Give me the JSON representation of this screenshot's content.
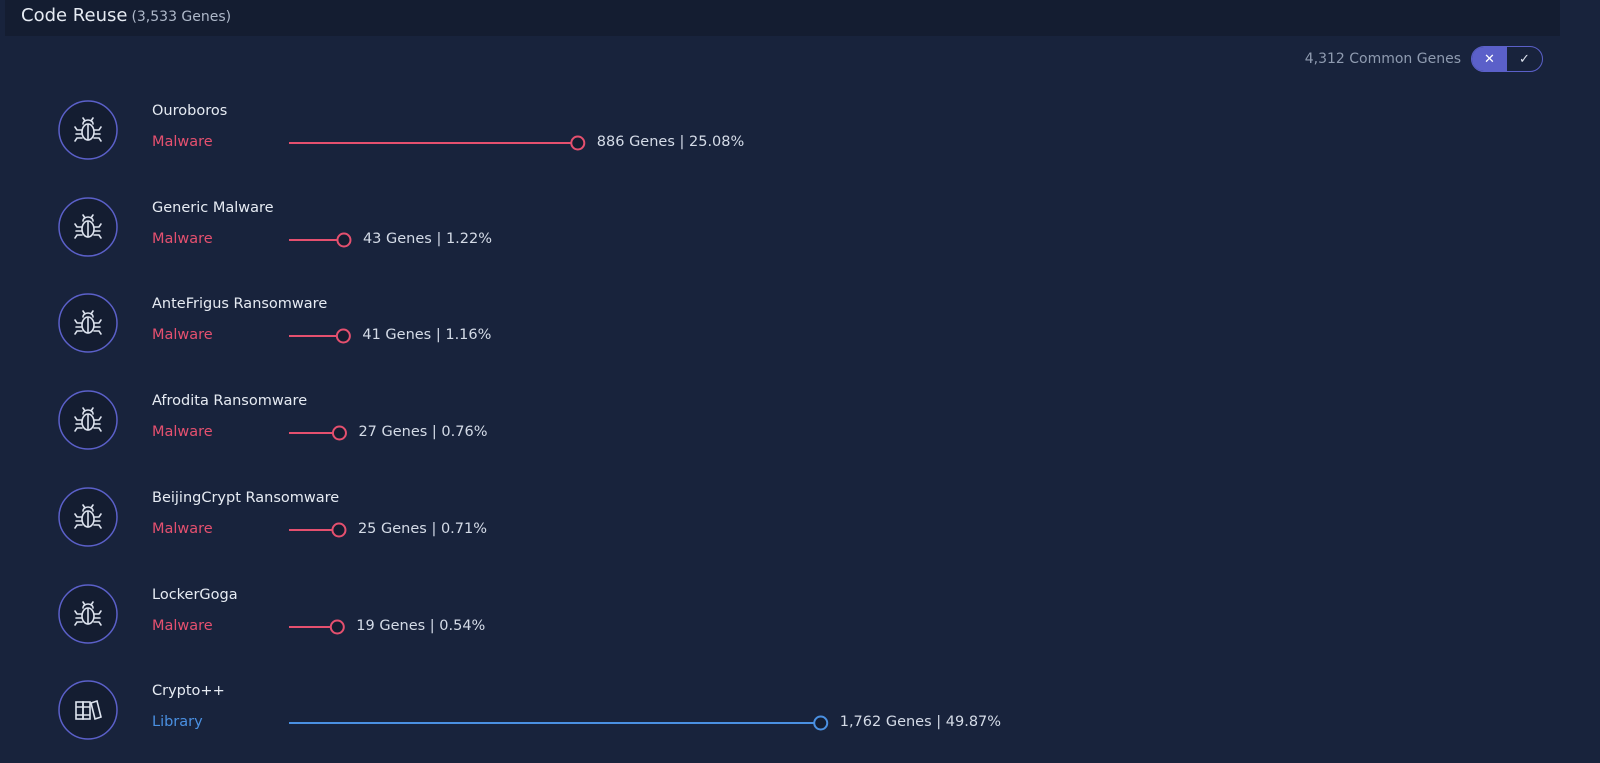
{
  "header": {
    "title": "Code Reuse",
    "count": "(3,533 Genes)"
  },
  "toolbar": {
    "common_genes": "4,312 Common Genes",
    "toggle_off": "✕",
    "toggle_on": "✓"
  },
  "items": [
    {
      "name": "Ouroboros",
      "category": "Malware",
      "color": "#e5506f",
      "value": 25.08,
      "value_label": "886 Genes | 25.08%"
    },
    {
      "name": "Generic Malware",
      "category": "Malware",
      "color": "#e5506f",
      "value": 1.22,
      "value_label": "43 Genes | 1.22%"
    },
    {
      "name": "AnteFrigus Ransomware",
      "category": "Malware",
      "color": "#e5506f",
      "value": 1.16,
      "value_label": "41 Genes | 1.16%"
    },
    {
      "name": "Afrodita Ransomware",
      "category": "Malware",
      "color": "#e5506f",
      "value": 0.76,
      "value_label": "27 Genes | 0.76%"
    },
    {
      "name": "BeijingCrypt Ransomware",
      "category": "Malware",
      "color": "#e5506f",
      "value": 0.71,
      "value_label": "25 Genes | 0.71%"
    },
    {
      "name": "LockerGoga",
      "category": "Malware",
      "color": "#e5506f",
      "value": 0.54,
      "value_label": "19 Genes | 0.54%"
    },
    {
      "name": "Crypto++",
      "category": "Library",
      "color": "#4a90e2",
      "value": 49.87,
      "value_label": "1,762 Genes | 49.87%"
    }
  ]
}
